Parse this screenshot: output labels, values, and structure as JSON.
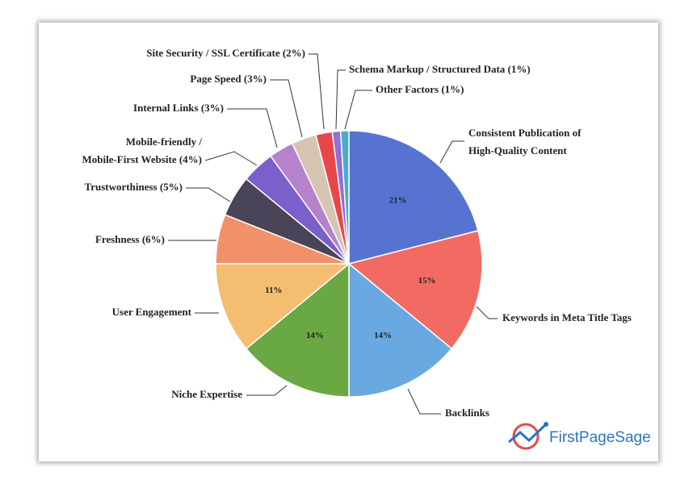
{
  "chart_data": {
    "type": "pie",
    "categories": [
      "Consistent Publication of\nHigh-Quality Content",
      "Keywords in Meta Title Tags",
      "Backlinks",
      "Niche Expertise",
      "User Engagement",
      "Freshness (6%)",
      "Trustworthiness (5%)",
      "Mobile-friendly /\nMobile-First Website (4%)",
      "Internal Links (3%)",
      "Page Speed (3%)",
      "Site Security / SSL Certificate (2%)",
      "Schema Markup / Structured Data (1%)",
      "Other Factors (1%)"
    ],
    "values": [
      21,
      15,
      14,
      14,
      11,
      6,
      5,
      4,
      3,
      3,
      2,
      1,
      1
    ],
    "value_labels": [
      "21%",
      "15%",
      "14%",
      "14%",
      "11%",
      null,
      null,
      null,
      null,
      null,
      null,
      null,
      null
    ],
    "colors": [
      "#5773d2",
      "#f26b62",
      "#6aa8e2",
      "#6aa843",
      "#f4bd6f",
      "#f0916a",
      "#4a4458",
      "#7b5fcb",
      "#b483cc",
      "#d6c5b3",
      "#e8474a",
      "#8f6fd8",
      "#4aaccb"
    ],
    "logo": "FirstPageSage"
  }
}
